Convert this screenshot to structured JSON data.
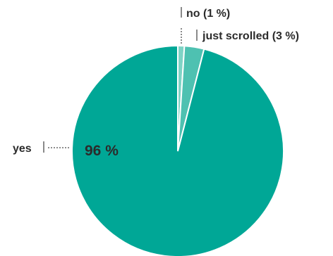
{
  "chart_data": {
    "type": "pie",
    "categories": [
      "no",
      "just scrolled",
      "yes"
    ],
    "values": [
      1,
      3,
      96
    ],
    "labels": [
      "no (1 %)",
      "just scrolled (3 %)",
      "yes"
    ],
    "inside_label": "96 %",
    "colors": [
      "#7fd3c5",
      "#4ec1b1",
      "#00a796"
    ]
  }
}
